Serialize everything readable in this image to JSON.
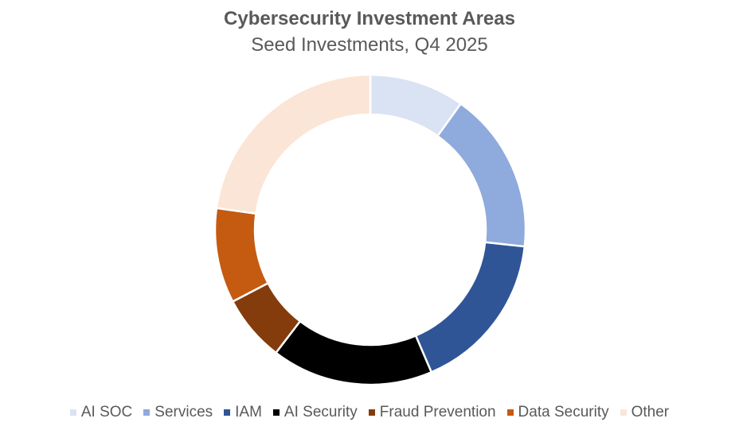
{
  "chart_data": {
    "type": "pie",
    "variant": "donut",
    "title": "Cybersecurity Investment Areas",
    "subtitle": "Seed Investments, Q4 2025",
    "legend_position": "bottom",
    "series": [
      {
        "name": "AI SOC",
        "value": 10,
        "color": "#DAE3F3"
      },
      {
        "name": "Services",
        "value": 17,
        "color": "#8FAADC"
      },
      {
        "name": "IAM",
        "value": 17,
        "color": "#2F5597"
      },
      {
        "name": "AI Security",
        "value": 17,
        "color": "#000000"
      },
      {
        "name": "Fraud Prevention",
        "value": 7,
        "color": "#843C0C"
      },
      {
        "name": "Data Security",
        "value": 10,
        "color": "#C55A11"
      },
      {
        "name": "Other",
        "value": 23,
        "color": "#FBE5D6"
      }
    ]
  }
}
